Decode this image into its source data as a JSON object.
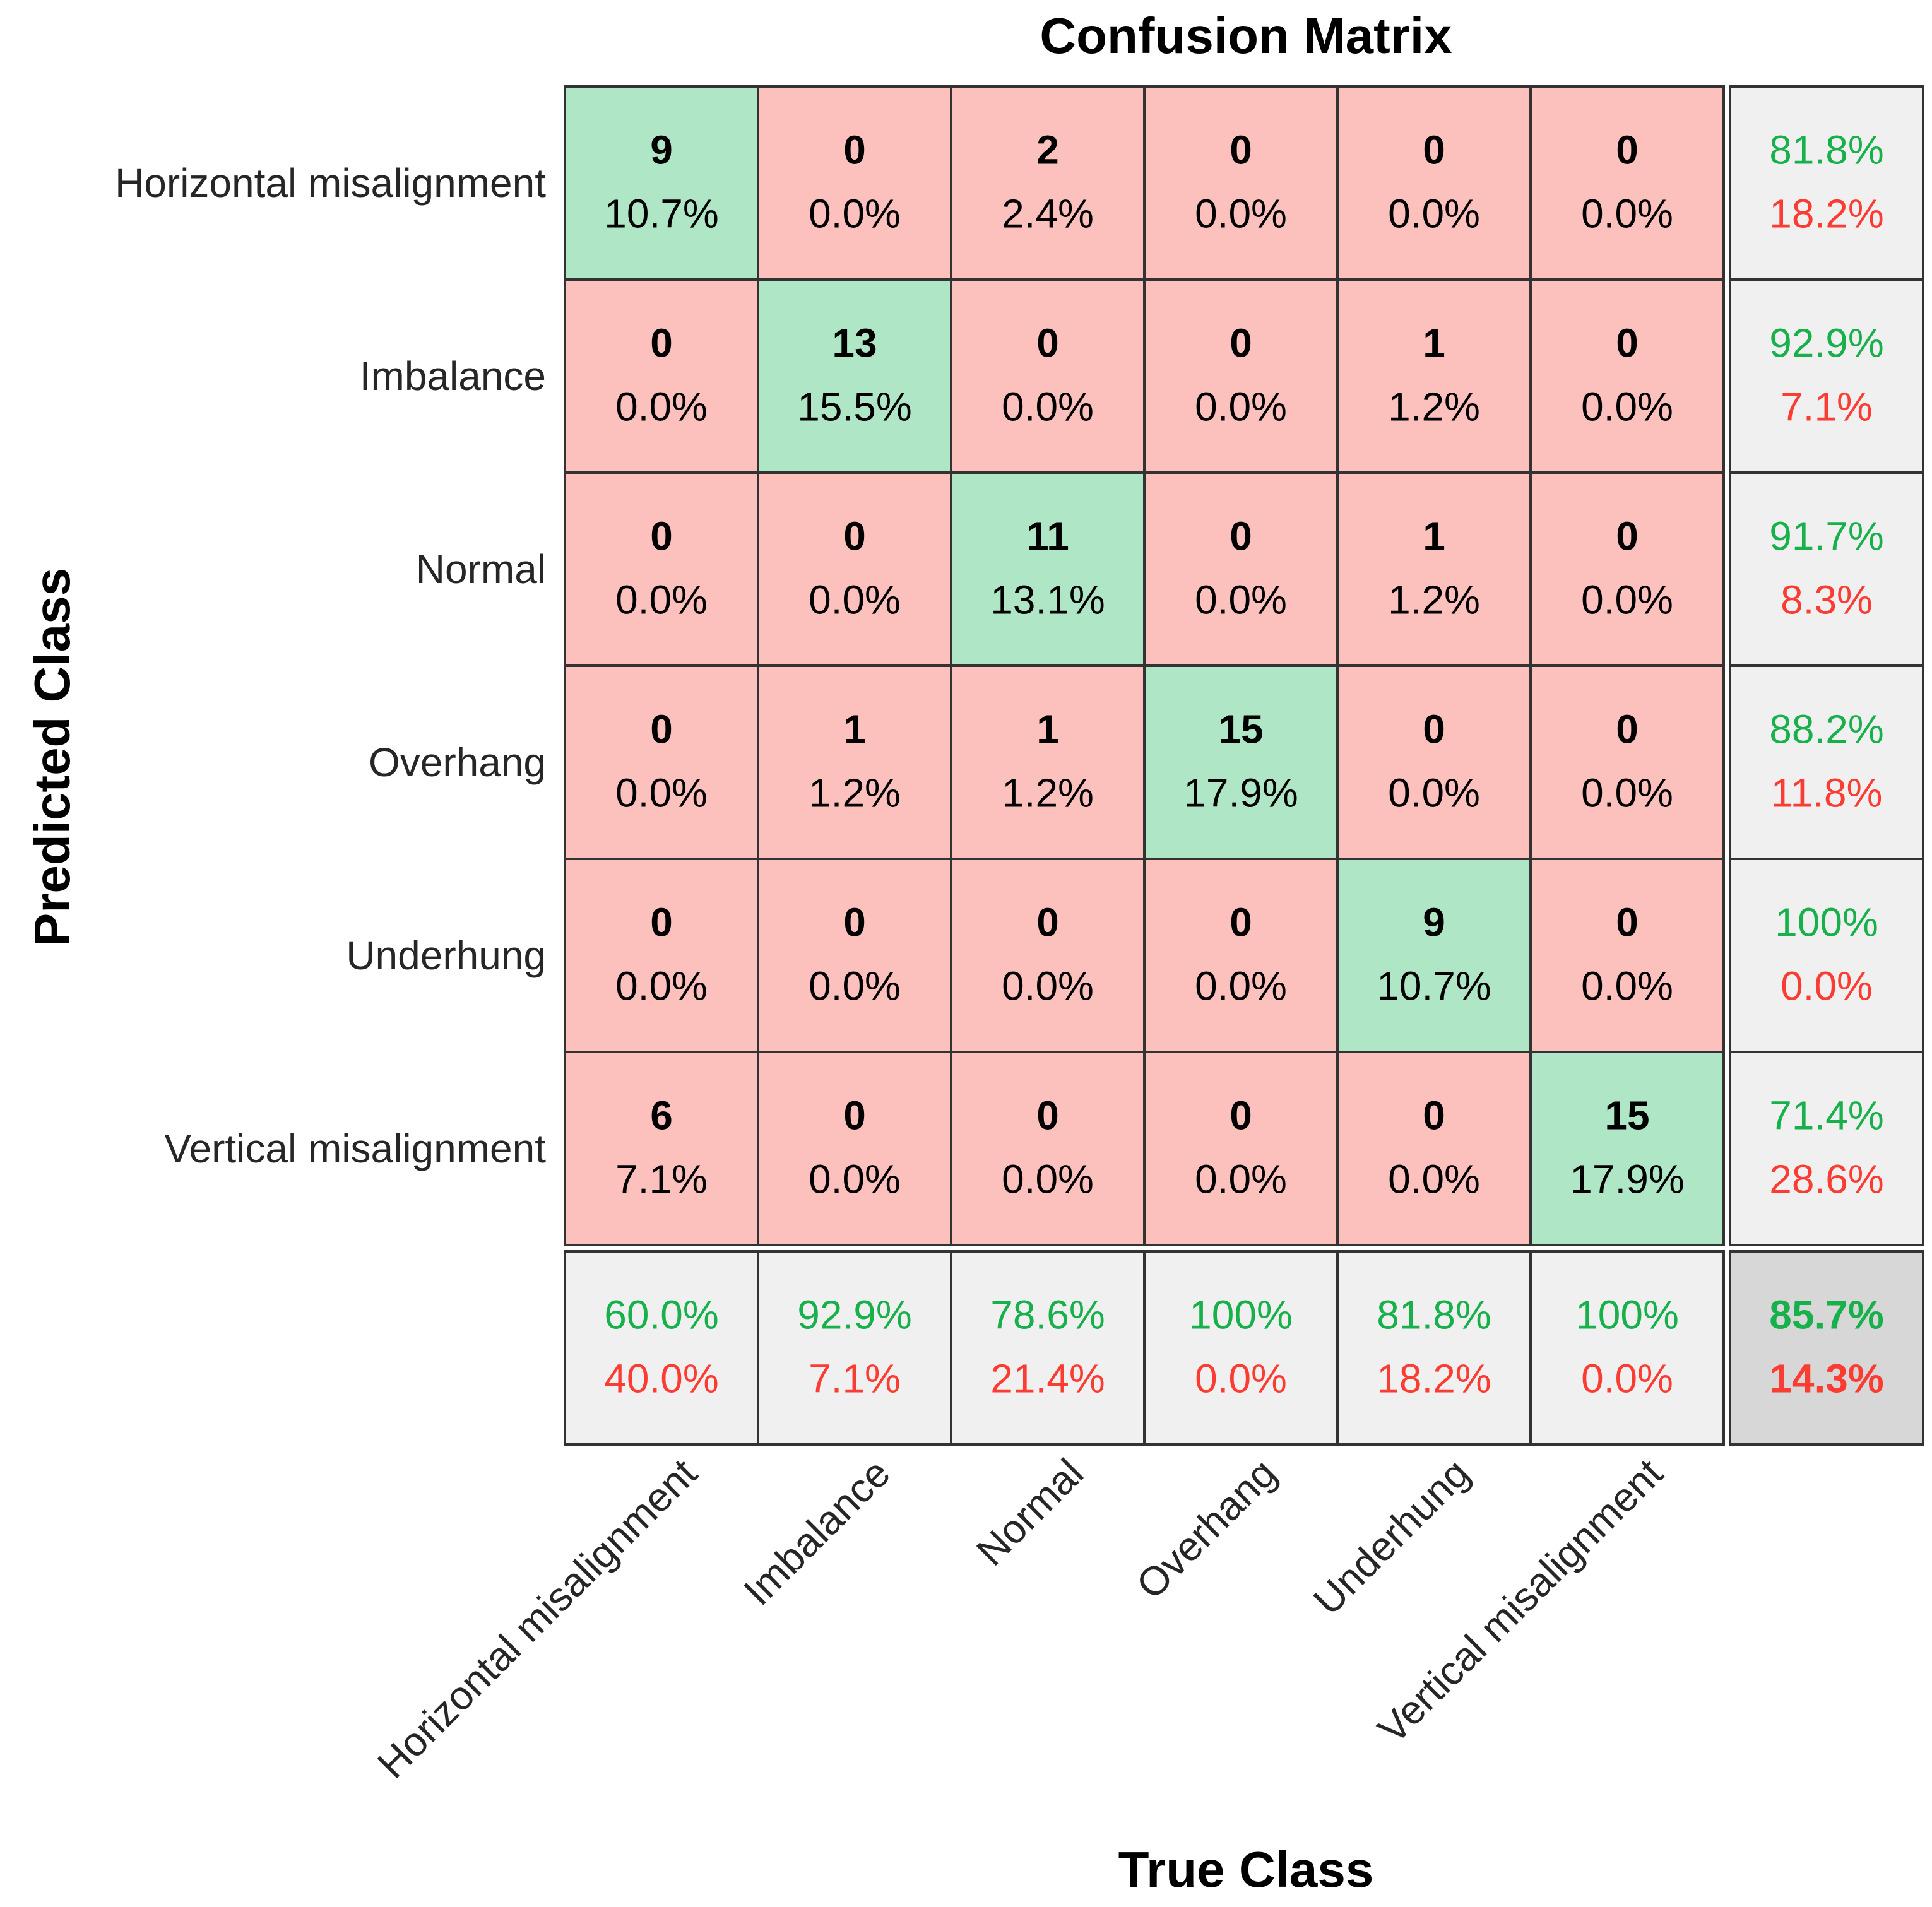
{
  "chart_data": {
    "type": "heatmap",
    "title": "Confusion Matrix",
    "xlabel": "True Class",
    "ylabel": "Predicted Class",
    "classes": [
      "Horizontal misalignment",
      "Imbalance",
      "Normal",
      "Overhang",
      "Underhung",
      "Vertical misalignment"
    ],
    "counts": [
      [
        9,
        0,
        2,
        0,
        0,
        0
      ],
      [
        0,
        13,
        0,
        0,
        1,
        0
      ],
      [
        0,
        0,
        11,
        0,
        1,
        0
      ],
      [
        0,
        1,
        1,
        15,
        0,
        0
      ],
      [
        0,
        0,
        0,
        0,
        9,
        0
      ],
      [
        6,
        0,
        0,
        0,
        0,
        15
      ]
    ],
    "percents": [
      [
        "10.7%",
        "0.0%",
        "2.4%",
        "0.0%",
        "0.0%",
        "0.0%"
      ],
      [
        "0.0%",
        "15.5%",
        "0.0%",
        "0.0%",
        "1.2%",
        "0.0%"
      ],
      [
        "0.0%",
        "0.0%",
        "13.1%",
        "0.0%",
        "1.2%",
        "0.0%"
      ],
      [
        "0.0%",
        "1.2%",
        "1.2%",
        "17.9%",
        "0.0%",
        "0.0%"
      ],
      [
        "0.0%",
        "0.0%",
        "0.0%",
        "0.0%",
        "10.7%",
        "0.0%"
      ],
      [
        "7.1%",
        "0.0%",
        "0.0%",
        "0.0%",
        "0.0%",
        "17.9%"
      ]
    ],
    "row_summary": [
      {
        "correct": "81.8%",
        "incorrect": "18.2%"
      },
      {
        "correct": "92.9%",
        "incorrect": "7.1%"
      },
      {
        "correct": "91.7%",
        "incorrect": "8.3%"
      },
      {
        "correct": "88.2%",
        "incorrect": "11.8%"
      },
      {
        "correct": "100%",
        "incorrect": "0.0%"
      },
      {
        "correct": "71.4%",
        "incorrect": "28.6%"
      }
    ],
    "column_summary": [
      {
        "correct": "60.0%",
        "incorrect": "40.0%"
      },
      {
        "correct": "92.9%",
        "incorrect": "7.1%"
      },
      {
        "correct": "78.6%",
        "incorrect": "21.4%"
      },
      {
        "correct": "100%",
        "incorrect": "0.0%"
      },
      {
        "correct": "81.8%",
        "incorrect": "18.2%"
      },
      {
        "correct": "100%",
        "incorrect": "0.0%"
      }
    ],
    "overall": {
      "correct": "85.7%",
      "incorrect": "14.3%"
    },
    "colors": {
      "diagonal_cell": "#aee6c6",
      "off_diagonal_cell": "#fcc0bd",
      "summary_cell": "#f0f0f0",
      "overall_cell": "#d7d7d7",
      "correct_text": "#17b04b",
      "incorrect_text": "#fa3c32",
      "grid_line": "#333333",
      "text": "#000000"
    }
  }
}
